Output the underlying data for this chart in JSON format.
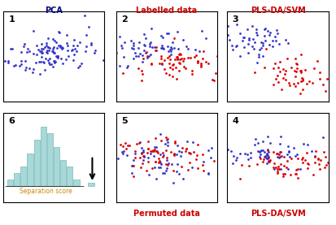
{
  "title_row1": [
    "PCA",
    "Labelled data",
    "PLS-DA/SVM"
  ],
  "title_row2": [
    "",
    "Permuted data",
    "PLS-DA/SVM"
  ],
  "title_colors_row1": [
    "#000080",
    "#cc0000",
    "#cc0000"
  ],
  "title_colors_row2": [
    "#000080",
    "#cc0000",
    "#cc0000"
  ],
  "panel_numbers": [
    "1",
    "2",
    "3",
    "6",
    "5",
    "4"
  ],
  "blue_color": "#3333cc",
  "red_color": "#dd0000",
  "hist_color": "#a8d8d8",
  "hist_edge_color": "#7ab8b8",
  "sep_score_color": "#cc8800",
  "background": "#ffffff",
  "hist_heights": [
    1,
    2,
    3,
    5,
    7,
    9,
    8,
    6,
    4,
    3,
    1
  ],
  "seed_panel1": 42,
  "seed_panel2": 43,
  "seed_panel3": 44,
  "seed_panel5": 45,
  "seed_panel4": 46
}
